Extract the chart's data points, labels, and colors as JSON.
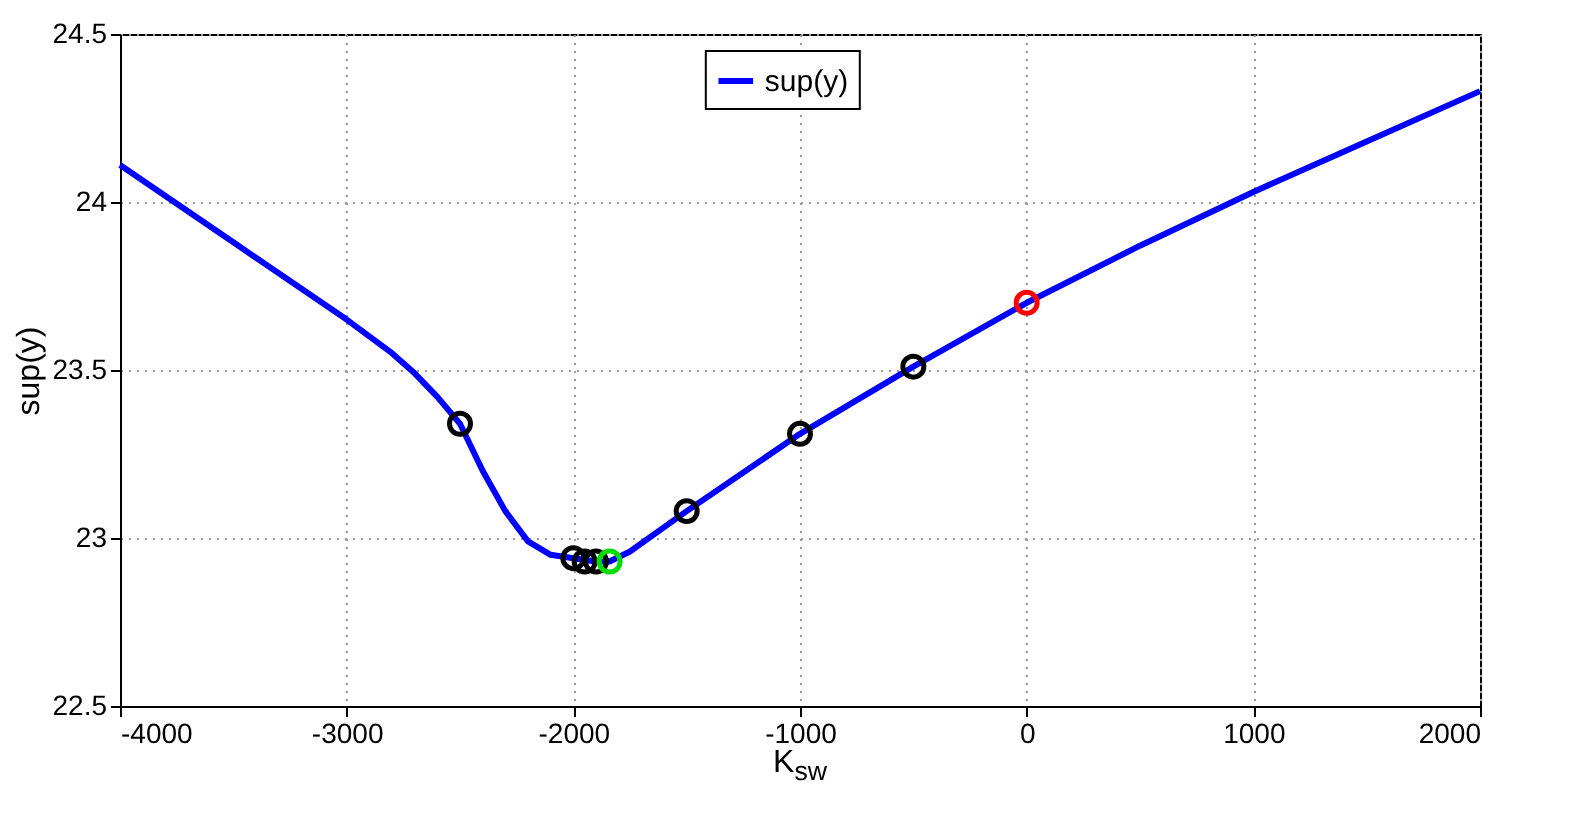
{
  "chart_data": {
    "type": "line",
    "xlabel": "K$_{sw}$",
    "ylabel": "sup(y)",
    "xlim": [
      -4000,
      2000
    ],
    "xticks": [
      -4000,
      -3000,
      -2000,
      -1000,
      0,
      1000,
      2000
    ],
    "ylim": [
      22.5,
      24.5
    ],
    "yticks": [
      22.5,
      23,
      23.5,
      24,
      24.5
    ],
    "grid": true,
    "legend": "top",
    "line_style": "solid",
    "series": [
      {
        "name": "sup(y)",
        "color": "#0000ff",
        "marker": "none",
        "x": [
          -4000,
          -3500,
          -3000,
          -2800,
          -2700,
          -2600,
          -2500,
          -2400,
          -2300,
          -2200,
          -2100,
          -2000,
          -1900,
          -1840,
          -1750,
          -1500,
          -1000,
          -500,
          0,
          500,
          1000,
          1500,
          2000
        ],
        "values": [
          24.11,
          23.88,
          23.65,
          23.55,
          23.49,
          23.42,
          23.34,
          23.2,
          23.08,
          22.99,
          22.95,
          22.94,
          22.93,
          22.93,
          22.96,
          23.08,
          23.31,
          23.51,
          23.7,
          23.87,
          24.03,
          24.18,
          24.33
        ]
      },
      {
        "type": "scatter",
        "color": "#000000",
        "marker": "circle",
        "x": [
          -2500,
          -2000,
          -1950,
          -1900,
          -1500,
          -1000,
          -500
        ],
        "values": [
          23.34,
          22.94,
          22.93,
          22.93,
          23.08,
          23.31,
          23.51
        ]
      },
      {
        "type": "scatter",
        "color": "#00dd00",
        "marker": "circle",
        "x": [
          -1840
        ],
        "values": [
          22.93
        ]
      },
      {
        "type": "scatter",
        "color": "#ff0000",
        "marker": "circle",
        "x": [
          0
        ],
        "values": [
          23.7
        ]
      }
    ]
  }
}
